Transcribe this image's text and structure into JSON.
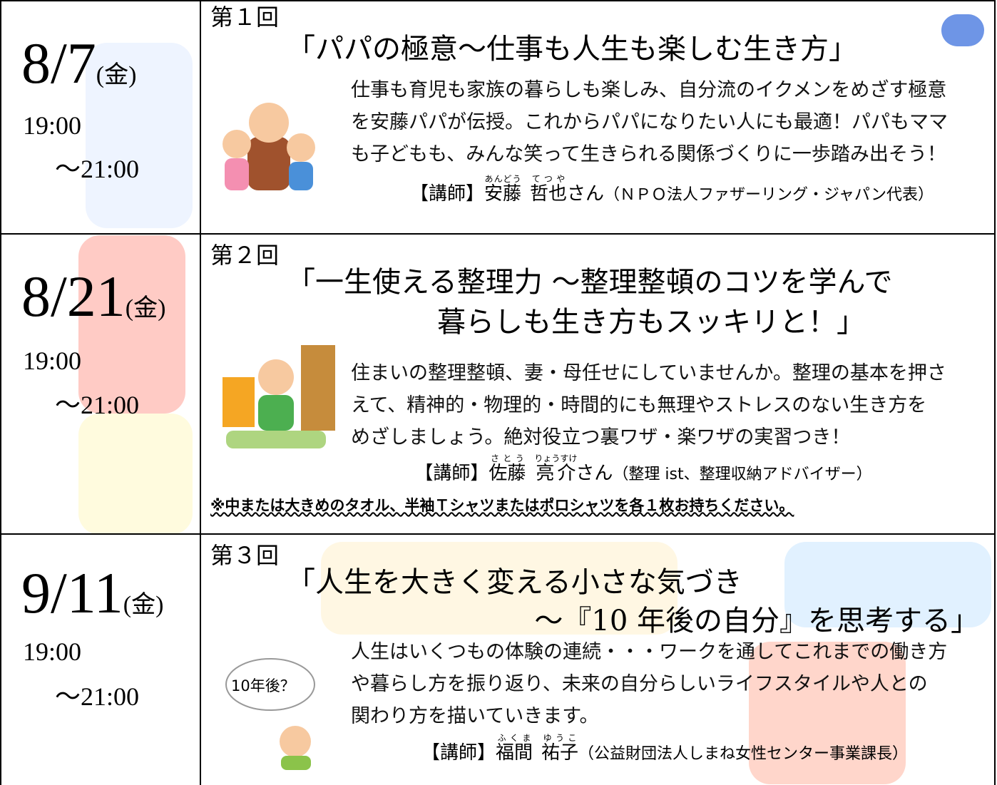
{
  "sessions": [
    {
      "date": "8/7",
      "weekday": "(金)",
      "time_start": "19:00",
      "time_end": "～21:00",
      "number": "第１回",
      "title": [
        "「パパの極意～仕事も人生も楽しむ生き方」"
      ],
      "description": [
        "仕事も育児も家族の暮らしも楽しみ、自分流のイクメンをめざす極意",
        "を安藤パパが伝授。これからパパになりたい人にも最適！パパもママ",
        "も子どもも、みんな笑って生きられる関係づくりに一歩踏み出そう！"
      ],
      "lecturer": {
        "prefix": "【講師】",
        "family": "安藤",
        "family_reading": "あんどう",
        "given": "哲也",
        "given_reading": "てつや",
        "suffix": "さん",
        "affiliation": "（ＮＰＯ法人ファザーリング・ジャパン代表）"
      }
    },
    {
      "date": "8/21",
      "weekday": "(金)",
      "time_start": "19:00",
      "time_end": "～21:00",
      "number": "第２回",
      "title": [
        "「一生使える整理力 ～整理整頓のコツを学んで",
        "暮らしも生き方もスッキリと！」"
      ],
      "description": [
        "住まいの整理整頓、妻・母任せにしていませんか。整理の基本を押さ",
        "えて、精神的・物理的・時間的にも無理やストレスのない生き方を",
        "めざしましょう。絶対役立つ裏ワザ・楽ワザの実習つき！"
      ],
      "lecturer": {
        "prefix": "【講師】",
        "family": "佐藤",
        "family_reading": "さとう",
        "given": "亮介",
        "given_reading": "りょうすけ",
        "suffix": "さん",
        "affiliation": "（整理 ist、整理収納アドバイザー）"
      },
      "note": "※中または大きめのタオル、半袖Ｔシャツまたはポロシャツを各１枚お持ちください。"
    },
    {
      "date": "9/11",
      "weekday": "(金)",
      "time_start": "19:00",
      "time_end": "～21:00",
      "number": "第３回",
      "title": [
        "「人生を大きく変える小さな気づき",
        "～『10 年後の自分』を思考する」"
      ],
      "description": [
        "人生はいくつもの体験の連続・・・ワークを通してこれまでの働き方",
        "や暮らし方を振り返り、未来の自分らしいライフスタイルや人との",
        "関わり方を描いていきます。"
      ],
      "illustration_text": "10年後？",
      "lecturer": {
        "prefix": "【講師】",
        "family": "福間",
        "family_reading": "ふくま",
        "given": "祐子",
        "given_reading": "ゆうこ",
        "affiliation": "（公益財団法人しまね女性センター事業課長）"
      }
    }
  ]
}
